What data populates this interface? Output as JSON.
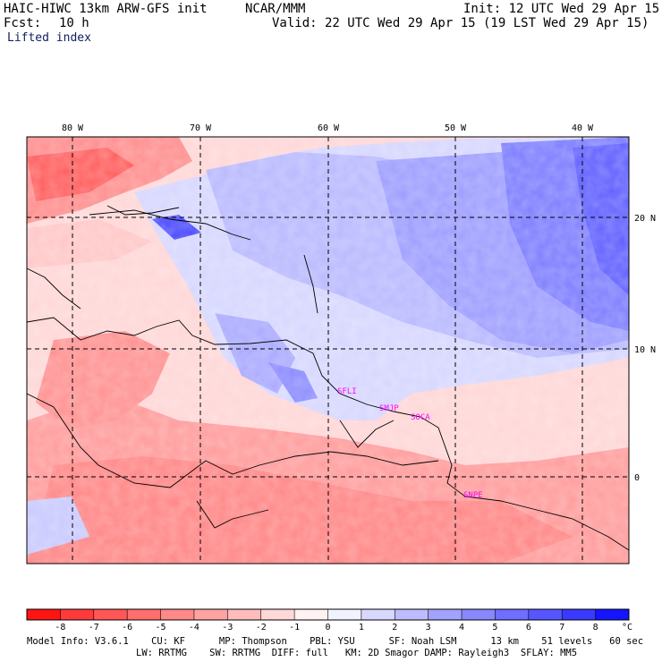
{
  "header": {
    "model": "HAIC-HIWC 13km ARW-GFS init",
    "org": "NCAR/MMM",
    "init": "Init: 12 UTC Wed 29 Apr 15",
    "fcst_label": "Fcst:",
    "fcst_value": "10 h",
    "valid": "Valid: 22 UTC Wed 29 Apr 15 (19 LST Wed 29 Apr 15)",
    "field": "Lifted index"
  },
  "map": {
    "longitudes": [
      "80 W",
      "70 W",
      "60 W",
      "50 W",
      "40 W"
    ],
    "latitudes": [
      "20 N",
      "10 N",
      "0"
    ],
    "stations": [
      "SFLI",
      "SMJP",
      "SOCA",
      "SNPE"
    ]
  },
  "colorbar": {
    "ticks": [
      "-8",
      "-7",
      "-6",
      "-5",
      "-4",
      "-3",
      "-2",
      "-1",
      "0",
      "1",
      "2",
      "3",
      "4",
      "5",
      "6",
      "7",
      "8"
    ],
    "unit": "°C",
    "colors": [
      "#ff1414",
      "#ff3a3a",
      "#ff5656",
      "#ff6e6e",
      "#ff8888",
      "#ffa2a2",
      "#ffbcbc",
      "#ffd8d8",
      "#fff2f2",
      "#f2f2ff",
      "#d8d8ff",
      "#bcbcff",
      "#a2a2ff",
      "#8888ff",
      "#6e6eff",
      "#5656ff",
      "#3a3aff",
      "#1414ff"
    ]
  },
  "footer": {
    "line1": "Model Info: V3.6.1    CU: KF      MP: Thompson    PBL: YSU      SF: Noah LSM      13 km    51 levels   60 sec",
    "line2": "LW: RRTMG    SW: RRTMG  DIFF: full   KM: 2D Smagor DAMP: Rayleigh3  SFLAY: MM5"
  }
}
